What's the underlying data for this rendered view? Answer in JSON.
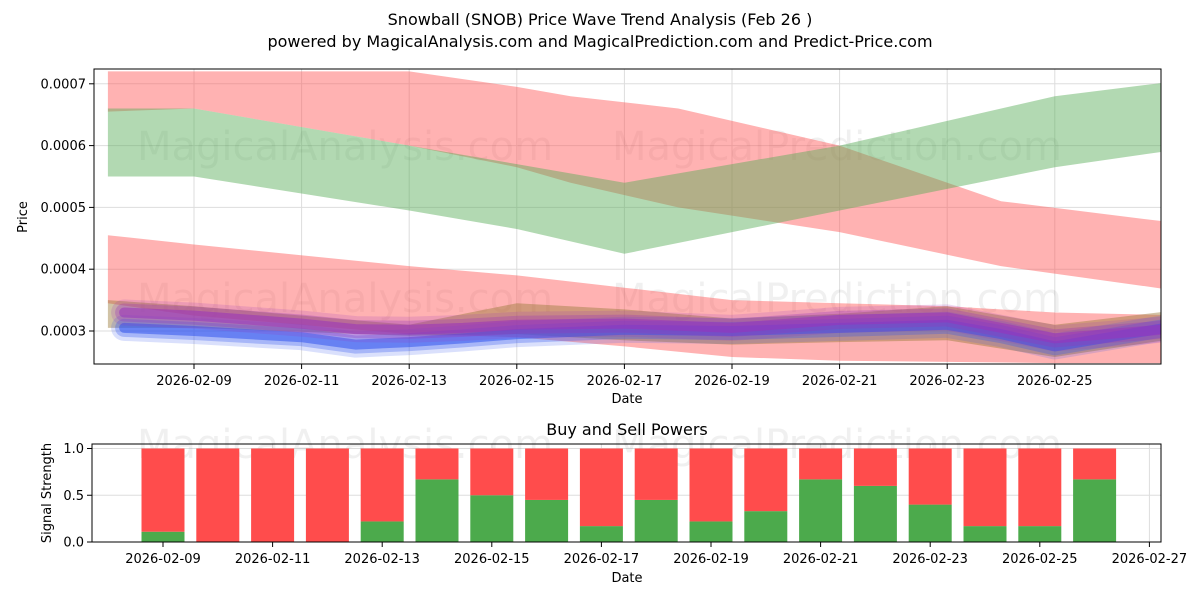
{
  "title": "Snowball (SNOB) Price Wave Trend Analysis (Feb 26 )",
  "subtitle": "powered by MagicalAnalysis.com and MagicalPrediction.com and Predict-Price.com",
  "watermarks": [
    "MagicalAnalysis.com",
    "MagicalPrediction.com"
  ],
  "colors": {
    "red_band": "#ff5555",
    "green_band": "#55aa55",
    "blue_line": "#3355ee",
    "purple_line": "#9933bb",
    "buy": "#4caa4c",
    "sell": "#ff4c4c",
    "grid": "#dddddd"
  },
  "chart_data": [
    {
      "type": "area",
      "name": "price-wave-chart",
      "xlabel": "Date",
      "ylabel": "Price",
      "x_ticks": [
        "2026-02-09",
        "2026-02-11",
        "2026-02-13",
        "2026-02-15",
        "2026-02-17",
        "2026-02-19",
        "2026-02-21",
        "2026-02-23",
        "2026-02-25"
      ],
      "y_ticks": [
        "0.0003",
        "0.0004",
        "0.0005",
        "0.0006",
        "0.0007"
      ],
      "x_range": [
        -1.8,
        18.9
      ],
      "ylim": [
        0.000248,
        0.000725
      ],
      "grid": true,
      "bands": [
        {
          "name": "upper red band",
          "color": "red",
          "x": [
            -1.6,
            0,
            4,
            6,
            7,
            9,
            12,
            15,
            18.7
          ],
          "lower": [
            0.000655,
            0.00066,
            0.0006,
            0.000565,
            0.00054,
            0.0005,
            0.00046,
            0.000405,
            0.00036
          ],
          "upper": [
            0.00072,
            0.00072,
            0.00072,
            0.000695,
            0.00068,
            0.00066,
            0.0006,
            0.00051,
            0.00047
          ]
        },
        {
          "name": "green band",
          "color": "green",
          "x": [
            -1.6,
            0,
            4,
            6,
            8,
            10,
            12,
            14,
            16,
            18.8
          ],
          "lower": [
            0.00055,
            0.00055,
            0.000495,
            0.000465,
            0.000425,
            0.00046,
            0.000495,
            0.00053,
            0.000565,
            0.0006
          ],
          "upper": [
            0.00066,
            0.00066,
            0.0006,
            0.00057,
            0.00054,
            0.00057,
            0.0006,
            0.00064,
            0.00068,
            0.00071
          ]
        },
        {
          "name": "lower red band",
          "color": "red",
          "x": [
            -1.6,
            0,
            4,
            6,
            8,
            10,
            12,
            14,
            16,
            18.6
          ],
          "lower": [
            0.000345,
            0.000325,
            0.000295,
            0.00029,
            0.000275,
            0.000258,
            0.000252,
            0.00025,
            0.000248,
            0.000248
          ],
          "upper": [
            0.000455,
            0.00044,
            0.000405,
            0.00039,
            0.00037,
            0.00035,
            0.000345,
            0.00034,
            0.00033,
            0.000325
          ]
        },
        {
          "name": "olive channel",
          "color": "olive",
          "x": [
            -1.6,
            0,
            4,
            6,
            8,
            10,
            12,
            14,
            16,
            18.4
          ],
          "lower": [
            0.000305,
            0.000305,
            0.000292,
            0.000295,
            0.000285,
            0.000278,
            0.000282,
            0.000285,
            0.000258,
            0.00029
          ],
          "upper": [
            0.00035,
            0.00034,
            0.00031,
            0.000345,
            0.000335,
            0.00032,
            0.000328,
            0.00034,
            0.00031,
            0.000335
          ]
        }
      ],
      "lines": [
        {
          "name": "blue wave",
          "color": "blue",
          "x": [
            -1.3,
            0,
            2,
            3,
            4,
            5,
            6,
            8,
            10,
            12,
            14,
            15,
            16,
            18.4
          ],
          "y": [
            0.000305,
            0.0003,
            0.00029,
            0.000278,
            0.000282,
            0.000288,
            0.000295,
            0.000302,
            0.0003,
            0.000305,
            0.00031,
            0.000295,
            0.000275,
            0.00031
          ]
        },
        {
          "name": "purple wave",
          "color": "purple",
          "x": [
            -1.3,
            0,
            2,
            3,
            4,
            5,
            6,
            8,
            10,
            12,
            14,
            15,
            16,
            18.4
          ],
          "y": [
            0.00033,
            0.000325,
            0.000312,
            0.000303,
            0.000302,
            0.000305,
            0.00031,
            0.000312,
            0.000305,
            0.000318,
            0.000322,
            0.000305,
            0.000288,
            0.000305
          ]
        }
      ]
    },
    {
      "type": "bar",
      "name": "buy-sell-powers-chart",
      "title": "Buy and Sell Powers",
      "xlabel": "Date",
      "ylabel": "Signal Strength",
      "x_ticks": [
        "2026-02-09",
        "2026-02-11",
        "2026-02-13",
        "2026-02-15",
        "2026-02-17",
        "2026-02-19",
        "2026-02-21",
        "2026-02-23",
        "2026-02-25",
        "2026-02-27"
      ],
      "y_ticks": [
        "0.0",
        "0.5",
        "1.0"
      ],
      "ylim": [
        0,
        1.05
      ],
      "categories": [
        "2026-02-09",
        "2026-02-10",
        "2026-02-11",
        "2026-02-12",
        "2026-02-13",
        "2026-02-14",
        "2026-02-15",
        "2026-02-16",
        "2026-02-17",
        "2026-02-18",
        "2026-02-19",
        "2026-02-20",
        "2026-02-21",
        "2026-02-22",
        "2026-02-23",
        "2026-02-24",
        "2026-02-25",
        "2026-02-26"
      ],
      "series": [
        {
          "name": "Buy",
          "color": "green",
          "values": [
            0.11,
            0.0,
            0.0,
            0.0,
            0.22,
            0.67,
            0.5,
            0.45,
            0.17,
            0.45,
            0.22,
            0.33,
            0.67,
            0.6,
            0.4,
            0.17,
            0.17,
            0.67
          ]
        },
        {
          "name": "Sell",
          "color": "red",
          "values": [
            0.89,
            1.0,
            1.0,
            1.0,
            0.78,
            0.33,
            0.5,
            0.55,
            0.83,
            0.55,
            0.78,
            0.67,
            0.33,
            0.4,
            0.6,
            0.83,
            0.83,
            0.33
          ]
        }
      ]
    }
  ]
}
